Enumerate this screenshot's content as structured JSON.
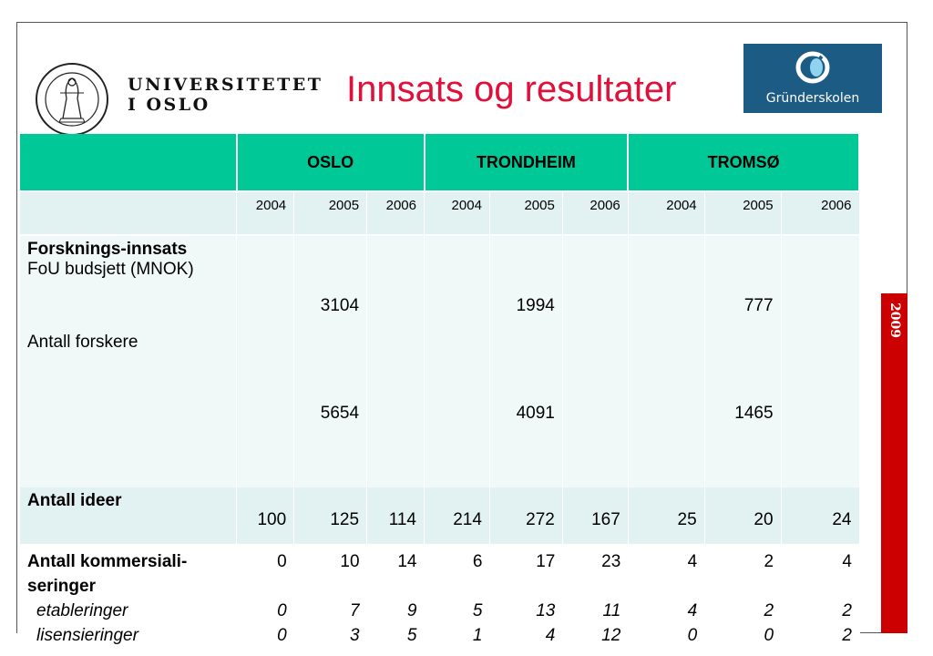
{
  "header": {
    "university_line1": "UNIVERSITETET",
    "university_line2": "I OSLO",
    "title": "Innsats og resultater",
    "partner_logo_text": "Gründerskolen",
    "year_badge": "2009",
    "seal_text": "UNIVERSITAS OSLOENSIS MDCCCXI"
  },
  "table": {
    "groups": [
      "OSLO",
      "TRONDHEIM",
      "TROMSØ"
    ],
    "years": [
      "2004",
      "2005",
      "2006",
      "2004",
      "2005",
      "2006",
      "2004",
      "2005",
      "2006"
    ],
    "research": {
      "heading": "Forsknings-innsats",
      "budget_label": "FoU budsjett (MNOK)",
      "budget_values": [
        "3104",
        "1994",
        "777"
      ],
      "researchers_label": "Antall forskere",
      "researchers_values": [
        "5654",
        "4091",
        "1465"
      ]
    },
    "ideas": {
      "label": "Antall ideer",
      "values": [
        "100",
        "125",
        "114",
        "214",
        "272",
        "167",
        "25",
        "20",
        "24"
      ]
    },
    "commercial": {
      "label_line1": "Antall kommersiali-",
      "label_line2": "seringer",
      "values": [
        "0",
        "10",
        "14",
        "6",
        "17",
        "23",
        "4",
        "2",
        "4"
      ],
      "sub1_label": "etableringer",
      "sub1_values": [
        "0",
        "7",
        "9",
        "5",
        "13",
        "11",
        "4",
        "2",
        "2"
      ],
      "sub2_label": "lisensieringer",
      "sub2_values": [
        "0",
        "3",
        "5",
        "1",
        "4",
        "12",
        "0",
        "0",
        "2"
      ]
    }
  },
  "colors": {
    "header_green": "#00c896",
    "title_red": "#e0103a",
    "logo_blue": "#1c5b84",
    "strip_red": "#cc0000"
  }
}
